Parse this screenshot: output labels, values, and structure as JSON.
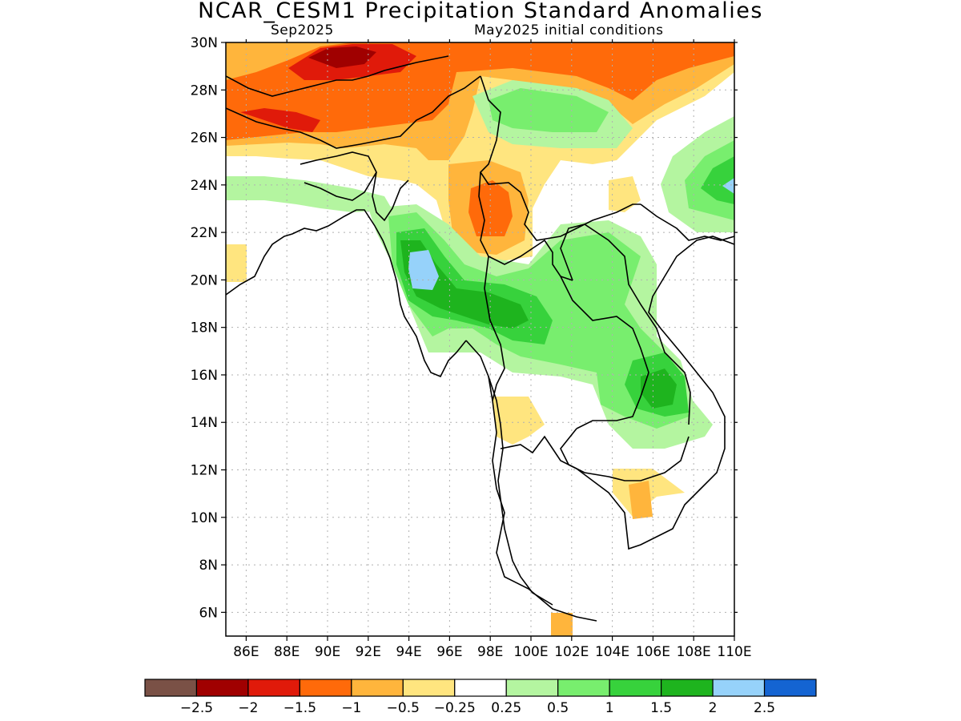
{
  "title": "NCAR_CESM1 Precipitation Standard Anomalies",
  "subtitle_left": "Sep2025",
  "subtitle_right": "May2025 initial conditions",
  "map": {
    "lon_range": [
      85,
      110
    ],
    "lat_range": [
      5,
      30
    ],
    "grid": true,
    "lat_ticks": [
      "30N",
      "28N",
      "26N",
      "24N",
      "22N",
      "20N",
      "18N",
      "16N",
      "14N",
      "12N",
      "10N",
      "8N",
      "6N"
    ],
    "lat_values": [
      30,
      28,
      26,
      24,
      22,
      20,
      18,
      16,
      14,
      12,
      10,
      8,
      6
    ],
    "lon_ticks": [
      "86E",
      "88E",
      "90E",
      "92E",
      "94E",
      "96E",
      "98E",
      "100E",
      "102E",
      "104E",
      "106E",
      "108E",
      "110E"
    ],
    "lon_values": [
      86,
      88,
      90,
      92,
      94,
      96,
      98,
      100,
      102,
      104,
      106,
      108,
      110
    ]
  },
  "colorbar": {
    "colors": [
      "#7a5146",
      "#a00000",
      "#e01a0a",
      "#ff6a0a",
      "#ffb53c",
      "#ffe57f",
      "#ffffff",
      "#b4f5a0",
      "#78ee6e",
      "#37d23c",
      "#1eb41e",
      "#96d2fa",
      "#1464d2"
    ],
    "labels": [
      "−2.5",
      "−2",
      "−1.5",
      "−1",
      "−0.5",
      "−0.25",
      "0.25",
      "0.5",
      "1",
      "1.5",
      "2",
      "2.5"
    ]
  }
}
